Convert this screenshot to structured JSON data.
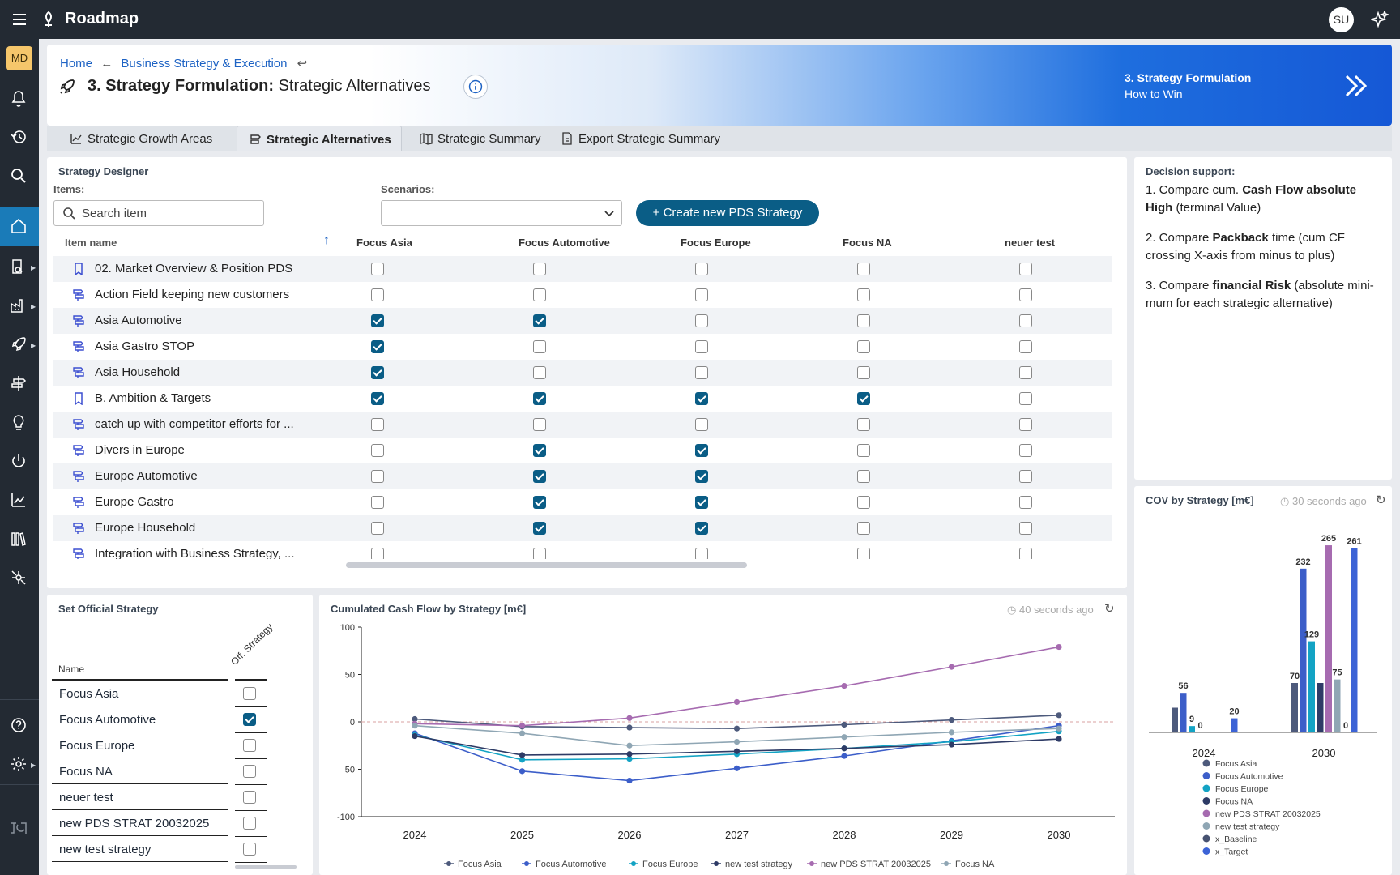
{
  "app": {
    "title": "Roadmap",
    "avatar": "SU",
    "workspace_badge": "MD"
  },
  "breadcrumb": {
    "home": "Home",
    "parent": "Business Strategy & Execution"
  },
  "page": {
    "title_bold": "3. Strategy Formulation:",
    "title_rest": " Strategic Alternatives",
    "step_title": "3. Strategy Formulation",
    "step_subtitle": "How to Win"
  },
  "tabs": [
    {
      "label": "Strategic Growth Areas"
    },
    {
      "label": "Strategic Alternatives"
    },
    {
      "label": "Strategic Summary"
    },
    {
      "label": "Export Strategic Summary"
    }
  ],
  "designer": {
    "title": "Strategy Designer",
    "items_label": "Items:",
    "search_placeholder": "Search item",
    "scenarios_label": "Scenarios:",
    "scenario_value": "",
    "create_button": "Create new PDS Strategy",
    "col_item": "Item name",
    "columns": [
      "Focus Asia",
      "Focus Automotive",
      "Focus Europe",
      "Focus NA",
      "neuer test"
    ],
    "rows": [
      {
        "name": "02. Market Overview & Position PDS",
        "icon": "bookmark-icon",
        "checks": [
          false,
          false,
          false,
          false,
          false
        ]
      },
      {
        "name": "Action Field keeping new customers",
        "icon": "signpost-icon",
        "checks": [
          false,
          false,
          false,
          false,
          false
        ]
      },
      {
        "name": "Asia Automotive",
        "icon": "signpost-icon",
        "checks": [
          true,
          true,
          false,
          false,
          false
        ]
      },
      {
        "name": "Asia Gastro STOP",
        "icon": "signpost-icon",
        "checks": [
          true,
          false,
          false,
          false,
          false
        ]
      },
      {
        "name": "Asia Household",
        "icon": "signpost-icon",
        "checks": [
          true,
          false,
          false,
          false,
          false
        ]
      },
      {
        "name": "B. Ambition & Targets",
        "icon": "bookmark-icon",
        "checks": [
          true,
          true,
          true,
          true,
          false
        ]
      },
      {
        "name": "catch up with competitor efforts for ...",
        "icon": "signpost-icon",
        "checks": [
          false,
          false,
          false,
          false,
          false
        ]
      },
      {
        "name": "Divers in Europe",
        "icon": "signpost-icon",
        "checks": [
          false,
          true,
          true,
          false,
          false
        ]
      },
      {
        "name": "Europe Automotive",
        "icon": "signpost-icon",
        "checks": [
          false,
          true,
          true,
          false,
          false
        ]
      },
      {
        "name": "Europe Gastro",
        "icon": "signpost-icon",
        "checks": [
          false,
          true,
          true,
          false,
          false
        ]
      },
      {
        "name": "Europe Household",
        "icon": "signpost-icon",
        "checks": [
          false,
          true,
          true,
          false,
          false
        ]
      },
      {
        "name": "Integration with Business Strategy, ...",
        "icon": "signpost-icon",
        "checks": [
          false,
          false,
          false,
          false,
          false
        ]
      }
    ]
  },
  "decision": {
    "title": "Decision support:",
    "p1a": "1. Compare cum. ",
    "p1b": "Cash Flow absolute",
    "p1c": "High",
    "p1d": " (terminal Value)",
    "p2a": "2. Compare ",
    "p2b": "Packback",
    "p2c": " time (cum CF",
    "p2d": "crossing X-axis from minus to plus)",
    "p3a": "3. Compare ",
    "p3b": "financial Risk",
    "p3c": " (absolute mini-",
    "p3d": "mum for each strategic alternative)"
  },
  "official": {
    "title": "Set Official Strategy",
    "col_name": "Name",
    "col_off": "Off. Strategy",
    "rows": [
      {
        "name": "Focus Asia",
        "official": false
      },
      {
        "name": "Focus Automotive",
        "official": true
      },
      {
        "name": "Focus Europe",
        "official": false
      },
      {
        "name": "Focus NA",
        "official": false
      },
      {
        "name": "neuer test",
        "official": false
      },
      {
        "name": "new PDS STRAT 20032025",
        "official": false
      },
      {
        "name": "new test strategy",
        "official": false
      }
    ]
  },
  "cashflow": {
    "title": "Cumulated Cash Flow by Strategy [m€]",
    "updated": "40 seconds ago"
  },
  "cov": {
    "title": "COV by Strategy [m€]",
    "updated": "30 seconds ago"
  },
  "colors": {
    "asia": "#4d5a7c",
    "automotive": "#3c5ec9",
    "europe": "#13a3c4",
    "na": "#2e3b66",
    "pds": "#a66bb0",
    "test": "#8fa6b4",
    "baseline": "#475271",
    "target": "#3c63d6"
  },
  "chart_data": [
    {
      "type": "line",
      "title": "Cumulated Cash Flow by Strategy [m€]",
      "x": [
        "2024",
        "2025",
        "2026",
        "2027",
        "2028",
        "2029",
        "2030"
      ],
      "ylim": [
        -100,
        100
      ],
      "yticks": [
        100,
        50,
        0,
        -50,
        -100
      ],
      "series": [
        {
          "name": "Focus Asia",
          "color": "#4d5a7c",
          "values": [
            3,
            -5,
            -6,
            -7,
            -3,
            2,
            7
          ]
        },
        {
          "name": "Focus Automotive",
          "color": "#3c5ec9",
          "values": [
            -12,
            -52,
            -62,
            -49,
            -36,
            -20,
            -4
          ]
        },
        {
          "name": "Focus Europe",
          "color": "#13a3c4",
          "values": [
            -14,
            -40,
            -39,
            -34,
            -28,
            -21,
            -10
          ]
        },
        {
          "name": "new test strategy",
          "color": "#2e3b66",
          "values": [
            -15,
            -35,
            -34,
            -31,
            -28,
            -24,
            -18
          ]
        },
        {
          "name": "new PDS STRAT 20032025",
          "color": "#a66bb0",
          "values": [
            -2,
            -4,
            4,
            21,
            38,
            58,
            79
          ]
        },
        {
          "name": "Focus NA",
          "color": "#8fa6b4",
          "values": [
            -4,
            -12,
            -25,
            -21,
            -16,
            -11,
            -7
          ]
        }
      ]
    },
    {
      "type": "bar",
      "title": "COV by Strategy [m€]",
      "categories": [
        "2024",
        "2030"
      ],
      "series": [
        {
          "name": "Focus Asia",
          "color": "#4d5a7c",
          "values": [
            35,
            70
          ]
        },
        {
          "name": "Focus Automotive",
          "color": "#3c5ec9",
          "values": [
            56,
            232
          ]
        },
        {
          "name": "Focus Europe",
          "color": "#13a3c4",
          "values": [
            9,
            129
          ]
        },
        {
          "name": "Focus NA",
          "color": "#2e3b66",
          "values": [
            0,
            70
          ]
        },
        {
          "name": "new PDS STRAT 20032025",
          "color": "#a66bb0",
          "values": [
            0,
            265
          ]
        },
        {
          "name": "new test strategy",
          "color": "#8fa6b4",
          "values": [
            0,
            75
          ]
        },
        {
          "name": "x_Baseline",
          "color": "#475271",
          "values": [
            0,
            0
          ]
        },
        {
          "name": "x_Target",
          "color": "#3c63d6",
          "values": [
            20,
            261
          ]
        }
      ],
      "data_labels": [
        {
          "category": "2024",
          "series": "Focus Automotive",
          "label": "56"
        },
        {
          "category": "2024",
          "series": "Focus Europe",
          "label": "9"
        },
        {
          "category": "2024",
          "series": "Focus NA",
          "label": "0"
        },
        {
          "category": "2024",
          "series": "x_Target",
          "label": "20"
        },
        {
          "category": "2030",
          "series": "Focus Asia",
          "label": "70"
        },
        {
          "category": "2030",
          "series": "Focus Automotive",
          "label": "232"
        },
        {
          "category": "2030",
          "series": "Focus Europe",
          "label": "129"
        },
        {
          "category": "2030",
          "series": "new PDS STRAT 20032025",
          "label": "265"
        },
        {
          "category": "2030",
          "series": "new test strategy",
          "label": "75"
        },
        {
          "category": "2030",
          "series": "x_Baseline",
          "label": "0"
        },
        {
          "category": "2030",
          "series": "x_Target",
          "label": "261"
        }
      ],
      "ylim": [
        0,
        280
      ]
    }
  ]
}
